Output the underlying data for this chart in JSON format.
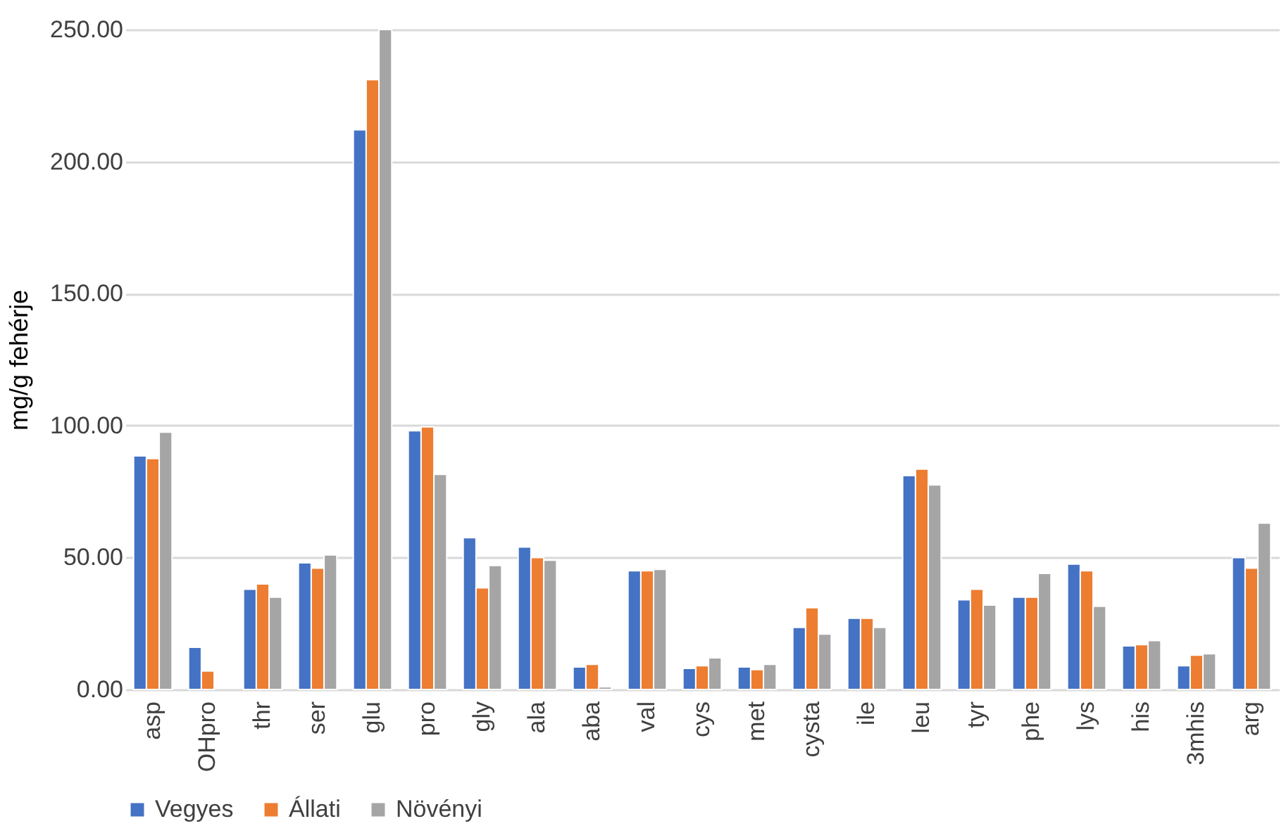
{
  "chart_data": {
    "type": "bar",
    "ylabel": "mg/g fehérje",
    "categories": [
      "asp",
      "OHpro",
      "thr",
      "ser",
      "glu",
      "pro",
      "gly",
      "ala",
      "aba",
      "val",
      "cys",
      "met",
      "cysta",
      "ile",
      "leu",
      "tyr",
      "phe",
      "lys",
      "his",
      "3mhis",
      "arg"
    ],
    "series": [
      {
        "name": "Vegyes",
        "color": "#4472c4",
        "values": [
          88.5,
          16,
          38,
          48,
          212,
          98,
          57.5,
          54,
          8.5,
          45,
          8,
          8.5,
          23.5,
          27,
          81,
          34,
          35,
          47.5,
          16.5,
          9,
          50
        ]
      },
      {
        "name": "Állati",
        "color": "#ed7d31",
        "values": [
          87.5,
          7,
          40,
          46,
          231,
          99.5,
          38.5,
          50,
          9.5,
          45,
          9,
          7.5,
          31,
          27,
          83.5,
          38,
          35,
          45,
          17,
          13,
          46
        ]
      },
      {
        "name": "Növényi",
        "color": "#a5a5a5",
        "values": [
          97.5,
          null,
          35,
          51,
          250,
          81.5,
          47,
          49,
          1,
          45.5,
          12,
          9.5,
          21,
          23.5,
          77.5,
          32,
          44,
          31.5,
          18.5,
          13.5,
          63
        ]
      }
    ],
    "ylim": [
      0,
      250
    ],
    "yticks": [
      {
        "value": 0,
        "label": "0.00"
      },
      {
        "value": 50,
        "label": "50.00"
      },
      {
        "value": 100,
        "label": "100.00"
      },
      {
        "value": 150,
        "label": "150.00"
      },
      {
        "value": 200,
        "label": "200.00"
      },
      {
        "value": 250,
        "label": "250.00"
      }
    ],
    "grid": "y",
    "legend": "bottom"
  }
}
